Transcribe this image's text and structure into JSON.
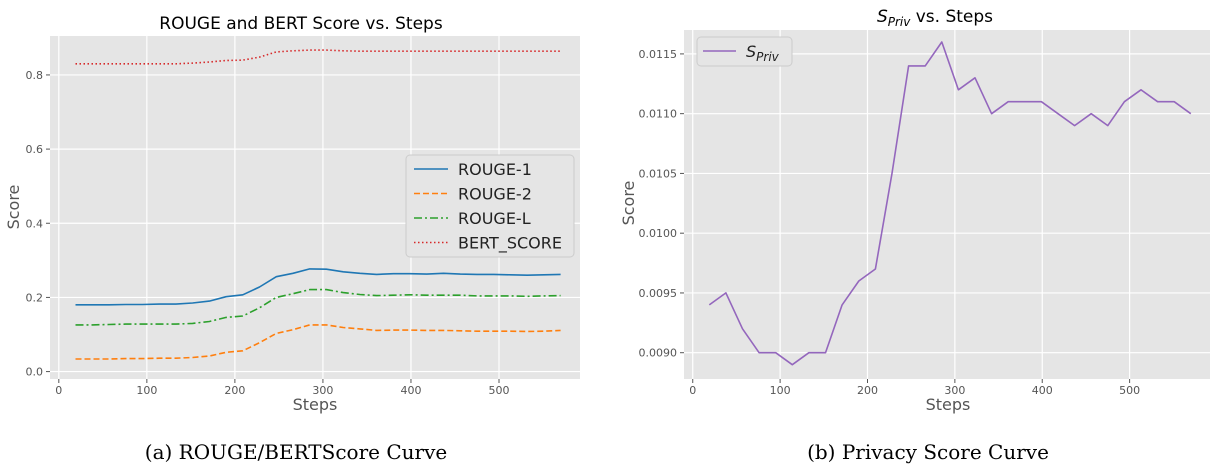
{
  "chart_data": [
    {
      "type": "line",
      "title": "ROUGE and BERT Score vs. Steps",
      "xlabel": "Steps",
      "ylabel": "Score",
      "xlim": [
        -10,
        592
      ],
      "ylim": [
        -0.02,
        0.905
      ],
      "xticks": [
        0,
        100,
        200,
        300,
        400,
        500
      ],
      "yticks": [
        0.0,
        0.2,
        0.4,
        0.6,
        0.8
      ],
      "ytick_labels": [
        "0.0",
        "0.2",
        "0.4",
        "0.6",
        "0.8"
      ],
      "legend_position": "center-right",
      "grid": true,
      "x": [
        19,
        38,
        57,
        76,
        95,
        114,
        133,
        152,
        171,
        190,
        209,
        228,
        247,
        266,
        285,
        304,
        323,
        342,
        361,
        380,
        399,
        418,
        437,
        456,
        475,
        494,
        513,
        532,
        551,
        570
      ],
      "series": [
        {
          "name": "ROUGE-1",
          "color": "#1f77b4",
          "dash": "solid",
          "values": [
            0.18,
            0.18,
            0.18,
            0.181,
            0.181,
            0.182,
            0.182,
            0.185,
            0.19,
            0.202,
            0.207,
            0.228,
            0.256,
            0.265,
            0.277,
            0.276,
            0.269,
            0.265,
            0.262,
            0.264,
            0.264,
            0.263,
            0.265,
            0.263,
            0.262,
            0.262,
            0.261,
            0.26,
            0.261,
            0.262
          ]
        },
        {
          "name": "ROUGE-2",
          "color": "#ff7f0e",
          "dash": "dashed",
          "values": [
            0.034,
            0.034,
            0.034,
            0.035,
            0.035,
            0.036,
            0.036,
            0.038,
            0.042,
            0.052,
            0.056,
            0.078,
            0.103,
            0.113,
            0.126,
            0.126,
            0.119,
            0.115,
            0.111,
            0.112,
            0.112,
            0.111,
            0.111,
            0.11,
            0.109,
            0.109,
            0.109,
            0.108,
            0.109,
            0.111
          ]
        },
        {
          "name": "ROUGE-L",
          "color": "#2ca02c",
          "dash": "dashdot",
          "values": [
            0.126,
            0.126,
            0.127,
            0.128,
            0.128,
            0.128,
            0.128,
            0.13,
            0.135,
            0.146,
            0.15,
            0.172,
            0.2,
            0.21,
            0.221,
            0.221,
            0.213,
            0.208,
            0.205,
            0.206,
            0.207,
            0.206,
            0.206,
            0.206,
            0.204,
            0.204,
            0.204,
            0.203,
            0.204,
            0.205
          ]
        },
        {
          "name": "BERT_SCORE",
          "color": "#d62728",
          "dash": "dotted",
          "values": [
            0.83,
            0.83,
            0.83,
            0.83,
            0.83,
            0.83,
            0.83,
            0.832,
            0.835,
            0.839,
            0.84,
            0.848,
            0.862,
            0.865,
            0.867,
            0.867,
            0.865,
            0.864,
            0.864,
            0.864,
            0.864,
            0.864,
            0.864,
            0.864,
            0.864,
            0.864,
            0.864,
            0.864,
            0.864,
            0.864
          ]
        }
      ]
    },
    {
      "type": "line",
      "title": "S",
      "title_sub": "Priv",
      "title_rest": " vs. Steps",
      "xlabel": "Steps",
      "ylabel": "Score",
      "xlim": [
        -10,
        592
      ],
      "ylim": [
        0.00878,
        0.0117
      ],
      "xticks": [
        0,
        100,
        200,
        300,
        400,
        500
      ],
      "yticks": [
        0.009,
        0.0095,
        0.01,
        0.0105,
        0.011,
        0.0115
      ],
      "ytick_labels": [
        "0.0090",
        "0.0095",
        "0.0100",
        "0.0105",
        "0.0110",
        "0.0115"
      ],
      "legend_position": "top-left",
      "grid": true,
      "x": [
        19,
        38,
        57,
        76,
        95,
        114,
        133,
        152,
        171,
        190,
        209,
        228,
        247,
        266,
        285,
        304,
        323,
        342,
        361,
        380,
        399,
        418,
        437,
        456,
        475,
        494,
        513,
        532,
        551,
        570
      ],
      "series": [
        {
          "name": "S",
          "name_sub": "Priv",
          "color": "#9467bd",
          "dash": "solid",
          "values": [
            0.0094,
            0.0095,
            0.0092,
            0.009,
            0.009,
            0.0089,
            0.009,
            0.009,
            0.0094,
            0.0096,
            0.0097,
            0.0105,
            0.0114,
            0.0114,
            0.0116,
            0.0112,
            0.0113,
            0.011,
            0.0111,
            0.0111,
            0.0111,
            0.011,
            0.0109,
            0.011,
            0.0109,
            0.0111,
            0.0112,
            0.0111,
            0.0111,
            0.011
          ]
        }
      ]
    }
  ],
  "captions": [
    "(a) ROUGE/BERTScore Curve",
    "(b) Privacy Score Curve"
  ]
}
